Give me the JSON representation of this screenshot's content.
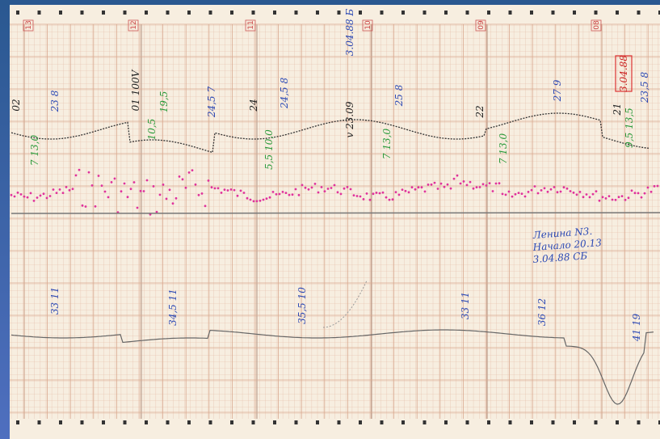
{
  "section_markers": [
    "13",
    "12",
    "11",
    "10",
    "09",
    "08"
  ],
  "date_stamp": "3.04.88",
  "upper_notes": [
    "02",
    "23 8",
    "01 100V",
    "19,5",
    "10,5",
    "24,5 7",
    "24",
    "24,5 8",
    "v 23.09",
    "3.04.88 Б",
    "25 8",
    "22",
    "27 9",
    "21",
    "23,5 8"
  ],
  "green_notes": [
    "7 13,0",
    "5,5 10,0",
    "7 13,0",
    "7 13,0",
    "9,5 13,5"
  ],
  "lower_notes": [
    "33 11",
    "34,5 11",
    "35,5 10",
    "33 11",
    "36 12",
    "41 19"
  ],
  "note": [
    "Ленина N3.",
    "Начало 20.13",
    "3.04.88 СБ"
  ]
}
